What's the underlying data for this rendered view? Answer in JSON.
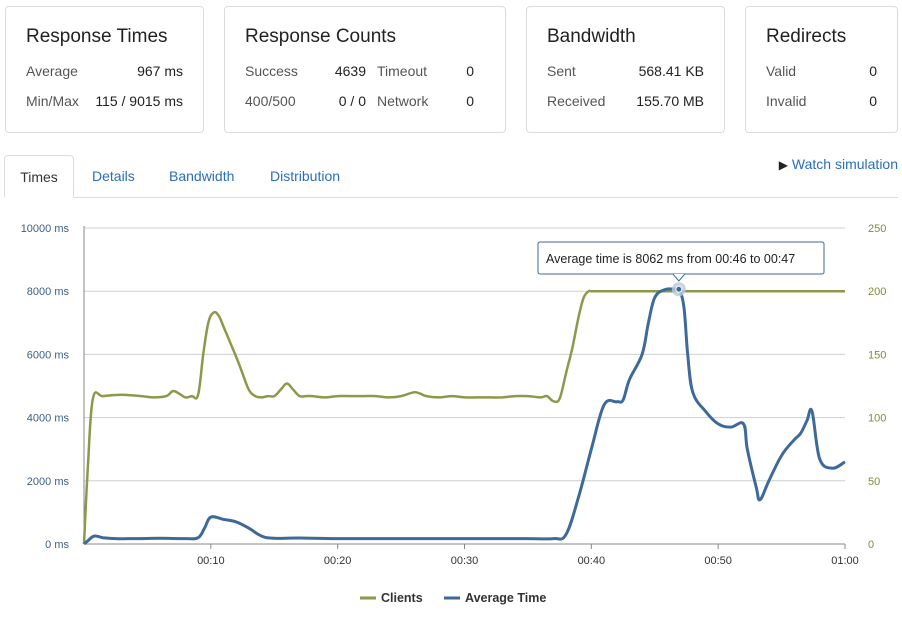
{
  "cards": {
    "response_times": {
      "title": "Response Times",
      "rows": [
        {
          "label": "Average",
          "value": "967 ms"
        },
        {
          "label": "Min/Max",
          "value": "115 / 9015 ms"
        }
      ]
    },
    "response_counts": {
      "title": "Response Counts",
      "rows": [
        {
          "label": "Success",
          "value": "4639",
          "label2": "Timeout",
          "value2": "0"
        },
        {
          "label": "400/500",
          "value": "0 / 0",
          "label2": "Network",
          "value2": "0"
        }
      ]
    },
    "bandwidth": {
      "title": "Bandwidth",
      "rows": [
        {
          "label": "Sent",
          "value": "568.41 KB"
        },
        {
          "label": "Received",
          "value": "155.70 MB"
        }
      ]
    },
    "redirects": {
      "title": "Redirects",
      "rows": [
        {
          "label": "Valid",
          "value": "0"
        },
        {
          "label": "Invalid",
          "value": "0"
        }
      ]
    }
  },
  "tabs": [
    "Times",
    "Details",
    "Bandwidth",
    "Distribution"
  ],
  "active_tab": "Times",
  "watch_simulation": {
    "icon": "play-icon",
    "label": "Watch simulation"
  },
  "tooltip": "Average time is 8062 ms from 00:46 to 00:47",
  "colors": {
    "clients": "#8a9a4b",
    "average_time": "#3e6a9a",
    "link": "#2a6ebb"
  },
  "chart_data": {
    "type": "line",
    "xlabel": "",
    "x_ticks": [
      "00:10",
      "00:20",
      "00:30",
      "00:40",
      "00:50",
      "01:00"
    ],
    "xlim": [
      0,
      60
    ],
    "y_left": {
      "label": "",
      "ticks": [
        "0 ms",
        "2000 ms",
        "4000 ms",
        "6000 ms",
        "8000 ms",
        "10000 ms"
      ],
      "lim": [
        0,
        10000
      ]
    },
    "y_right": {
      "label": "",
      "ticks": [
        "0",
        "50",
        "100",
        "150",
        "200",
        "250"
      ],
      "lim": [
        0,
        250
      ]
    },
    "grid": true,
    "legend": {
      "position": "bottom-center",
      "entries": [
        "Clients",
        "Average Time"
      ]
    },
    "series": [
      {
        "name": "Clients",
        "axis": "right",
        "x": [
          0,
          0.3,
          0.7,
          1.5,
          3,
          4.5,
          5.5,
          6.5,
          7,
          7.5,
          8,
          8.5,
          9,
          9.4,
          9.8,
          10.2,
          10.6,
          11,
          11.5,
          12,
          12.5,
          13,
          13.5,
          14,
          14.5,
          15,
          15.5,
          16,
          16.5,
          17,
          17.5,
          18,
          19,
          20,
          21,
          22,
          23,
          24,
          25,
          26,
          26.5,
          27,
          28,
          29,
          30,
          31,
          32,
          33,
          34,
          35,
          36,
          36.5,
          37,
          37.5,
          38,
          38.5,
          39,
          39.4,
          39.8,
          40,
          41,
          43,
          46,
          50,
          55,
          60
        ],
        "y": [
          0,
          60,
          115,
          117,
          118,
          117,
          116,
          117,
          121,
          119,
          116,
          117,
          118,
          150,
          175,
          183,
          181,
          172,
          160,
          148,
          135,
          122,
          117,
          116,
          117,
          117,
          122,
          127,
          122,
          117,
          117,
          117,
          116,
          117,
          117,
          117,
          117,
          116,
          117,
          120,
          119,
          117,
          116,
          117,
          116,
          116,
          116,
          116,
          117,
          117,
          116,
          117,
          113,
          115,
          135,
          155,
          180,
          195,
          200,
          200,
          200,
          200,
          200,
          200,
          200,
          200
        ]
      },
      {
        "name": "Average Time",
        "axis": "left",
        "x": [
          0,
          0.3,
          0.8,
          1.5,
          2.5,
          4,
          6,
          8,
          9,
          9.5,
          10,
          11,
          12,
          13,
          14,
          15,
          17,
          20,
          25,
          30,
          35,
          37,
          38,
          39,
          40,
          41,
          42,
          42.5,
          43,
          44,
          44.5,
          45,
          45.8,
          46.5,
          46.9,
          47.3,
          47.6,
          48,
          49,
          50,
          51,
          52,
          52.3,
          53,
          53.3,
          54,
          55,
          56,
          56.5,
          57,
          57.4,
          58,
          59,
          60
        ],
        "y": [
          0,
          100,
          250,
          200,
          170,
          170,
          180,
          170,
          200,
          500,
          850,
          780,
          700,
          500,
          250,
          180,
          190,
          170,
          170,
          170,
          170,
          170,
          300,
          1500,
          3000,
          4400,
          4500,
          4550,
          5200,
          6000,
          7000,
          7800,
          8050,
          8062,
          8062,
          7500,
          6000,
          4800,
          4200,
          3800,
          3700,
          3800,
          3000,
          1800,
          1400,
          2000,
          2800,
          3300,
          3500,
          3900,
          4200,
          2700,
          2400,
          2600
        ]
      }
    ]
  }
}
